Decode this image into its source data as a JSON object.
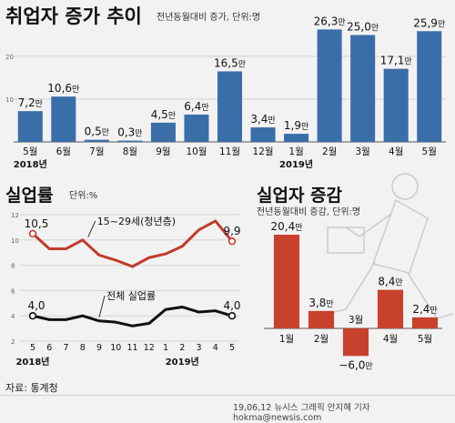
{
  "header": {
    "title": "취업자 증가 추이",
    "subtitle": "전년동월대비 증가, 단위:명"
  },
  "chart_data": [
    {
      "type": "bar",
      "title": "취업자 증가 추이",
      "subtitle": "전년동월대비 증가, 단위:명",
      "categories": [
        "5월",
        "6월",
        "7월",
        "8월",
        "9월",
        "10월",
        "11월",
        "12월",
        "1월",
        "2월",
        "3월",
        "4월",
        "5월"
      ],
      "values": [
        7.2,
        10.6,
        0.5,
        0.3,
        4.5,
        6.4,
        16.5,
        3.4,
        1.9,
        26.3,
        25.0,
        17.1,
        25.9
      ],
      "labels": [
        "7,2만",
        "10,6만",
        "0,5만",
        "0,3만",
        "4,5만",
        "6,4만",
        "16,5만",
        "3,4만",
        "1,9만",
        "26,3만",
        "25,0만",
        "17,1만",
        "25,9만"
      ],
      "year_labels": [
        "2018년",
        "2019년"
      ],
      "yticks": [
        "10",
        "20"
      ],
      "ylim": [
        0,
        30
      ],
      "color": "#3a6ea8"
    },
    {
      "type": "line",
      "title": "실업률",
      "subtitle": "단위:%",
      "x": [
        "5",
        "6",
        "7",
        "8",
        "9",
        "10",
        "11",
        "12",
        "1",
        "2",
        "3",
        "4",
        "5"
      ],
      "year_labels": [
        "2018년",
        "2019년"
      ],
      "yticks": [
        "2",
        "4",
        "6",
        "8",
        "10",
        "12"
      ],
      "ylim": [
        2,
        12
      ],
      "series": [
        {
          "name": "15~29세(청년층)",
          "values": [
            10.5,
            9.3,
            9.3,
            10.0,
            8.8,
            8.4,
            7.9,
            8.6,
            8.9,
            9.5,
            10.8,
            11.5,
            9.9
          ],
          "start_label": "10,5",
          "end_label": "9,9",
          "color": "#c23b2b"
        },
        {
          "name": "전체 실업률",
          "values": [
            4.0,
            3.7,
            3.7,
            4.0,
            3.6,
            3.5,
            3.2,
            3.4,
            4.5,
            4.7,
            4.3,
            4.4,
            4.0
          ],
          "start_label": "4,0",
          "end_label": "4,0",
          "color": "#111111"
        }
      ]
    },
    {
      "type": "bar",
      "title": "실업자 증감",
      "subtitle": "전년동월대비 증감, 단위:명",
      "categories": [
        "1월",
        "2월",
        "3월",
        "4월",
        "5월"
      ],
      "values": [
        20.4,
        3.8,
        -6.0,
        8.4,
        2.4
      ],
      "labels": [
        "20,4만",
        "3,8만",
        "−6,0만",
        "8,4만",
        "2,4만"
      ],
      "color": "#c8412c"
    }
  ],
  "footer": {
    "source": "자료: 통계청",
    "credit": "19,06,12 뉴시스 그래픽 안지혜 기자 hokma@newsis.com"
  }
}
